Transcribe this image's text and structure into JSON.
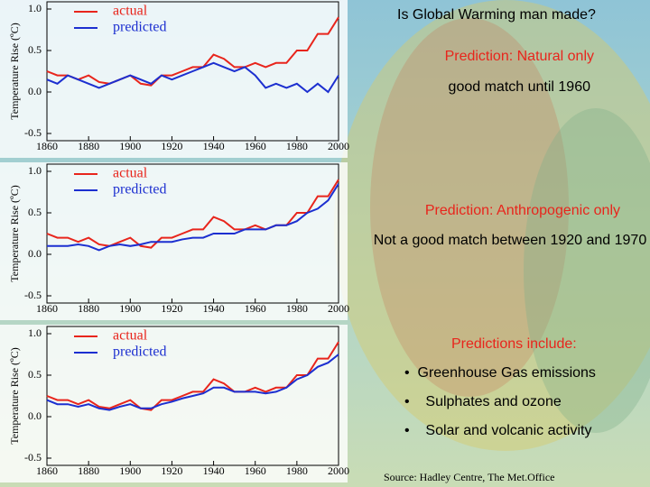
{
  "slide": {
    "title": "Is Global Warming man made?",
    "predictions_heading": "Predictions include:",
    "predictions": [
      "Greenhouse Gas emissions",
      "Sulphates and ozone",
      "Solar and volcanic activity"
    ],
    "source": "Source: Hadley Centre, The Met.Office"
  },
  "chart_data": [
    {
      "type": "line",
      "title": "Prediction: Natural only",
      "subtitle": "good match until 1960",
      "ylabel": "Temperature Rise (ºC)",
      "x": [
        1860,
        1865,
        1870,
        1875,
        1880,
        1885,
        1890,
        1895,
        1900,
        1905,
        1910,
        1915,
        1920,
        1925,
        1930,
        1935,
        1940,
        1945,
        1950,
        1955,
        1960,
        1965,
        1970,
        1975,
        1980,
        1985,
        1990,
        1995,
        2000
      ],
      "xlim": [
        1860,
        2000
      ],
      "xticks": [
        1860,
        1880,
        1900,
        1920,
        1940,
        1960,
        1980,
        2000
      ],
      "ylim": [
        -0.5,
        1
      ],
      "yticks": [
        {
          "value": 1,
          "label": "1.0"
        },
        0.5,
        {
          "value": 0,
          "label": "0.0"
        },
        -0.5
      ],
      "series": [
        {
          "name": "actual",
          "color": "#e8251c",
          "values": [
            0.25,
            0.2,
            0.2,
            0.15,
            0.2,
            0.12,
            0.1,
            0.15,
            0.2,
            0.1,
            0.08,
            0.2,
            0.2,
            0.25,
            0.3,
            0.3,
            0.45,
            0.4,
            0.3,
            0.3,
            0.35,
            0.3,
            0.35,
            0.35,
            0.5,
            0.5,
            0.7,
            0.7,
            0.9
          ]
        },
        {
          "name": "predicted",
          "color": "#1c2fd0",
          "values": [
            0.15,
            0.1,
            0.2,
            0.15,
            0.1,
            0.05,
            0.1,
            0.15,
            0.2,
            0.15,
            0.1,
            0.2,
            0.15,
            0.2,
            0.25,
            0.3,
            0.35,
            0.3,
            0.25,
            0.3,
            0.2,
            0.05,
            0.1,
            0.05,
            0.1,
            0.0,
            0.1,
            0.0,
            0.2
          ]
        }
      ]
    },
    {
      "type": "line",
      "title": "Prediction: Anthropogenic only",
      "subtitle": "Not a good match between 1920 and 1970",
      "ylabel": "Temperature Rise (ºC)",
      "x": [
        1860,
        1865,
        1870,
        1875,
        1880,
        1885,
        1890,
        1895,
        1900,
        1905,
        1910,
        1915,
        1920,
        1925,
        1930,
        1935,
        1940,
        1945,
        1950,
        1955,
        1960,
        1965,
        1970,
        1975,
        1980,
        1985,
        1990,
        1995,
        2000
      ],
      "xlim": [
        1860,
        2000
      ],
      "xticks": [
        1860,
        1880,
        1900,
        1920,
        1940,
        1960,
        1980,
        2000
      ],
      "ylim": [
        -0.5,
        1
      ],
      "yticks": [
        {
          "value": 1,
          "label": "1.0"
        },
        0.5,
        {
          "value": 0,
          "label": "0.0"
        },
        -0.5
      ],
      "series": [
        {
          "name": "actual",
          "color": "#e8251c",
          "values": [
            0.25,
            0.2,
            0.2,
            0.15,
            0.2,
            0.12,
            0.1,
            0.15,
            0.2,
            0.1,
            0.08,
            0.2,
            0.2,
            0.25,
            0.3,
            0.3,
            0.45,
            0.4,
            0.3,
            0.3,
            0.35,
            0.3,
            0.35,
            0.35,
            0.5,
            0.5,
            0.7,
            0.7,
            0.9
          ]
        },
        {
          "name": "predicted",
          "color": "#1c2fd0",
          "values": [
            0.1,
            0.1,
            0.1,
            0.12,
            0.1,
            0.05,
            0.1,
            0.12,
            0.1,
            0.12,
            0.15,
            0.15,
            0.15,
            0.18,
            0.2,
            0.2,
            0.25,
            0.25,
            0.25,
            0.3,
            0.3,
            0.3,
            0.35,
            0.35,
            0.4,
            0.5,
            0.55,
            0.65,
            0.85
          ]
        }
      ]
    },
    {
      "type": "line",
      "ylabel": "Temperature Rise (ºC)",
      "x": [
        1860,
        1865,
        1870,
        1875,
        1880,
        1885,
        1890,
        1895,
        1900,
        1905,
        1910,
        1915,
        1920,
        1925,
        1930,
        1935,
        1940,
        1945,
        1950,
        1955,
        1960,
        1965,
        1970,
        1975,
        1980,
        1985,
        1990,
        1995,
        2000
      ],
      "xlim": [
        1860,
        2000
      ],
      "xticks": [
        1860,
        1880,
        1900,
        1920,
        1940,
        1960,
        1980,
        2000
      ],
      "ylim": [
        -0.5,
        1
      ],
      "yticks": [
        {
          "value": 1,
          "label": "1.0"
        },
        0.5,
        {
          "value": 0,
          "label": "0.0"
        },
        -0.5
      ],
      "series": [
        {
          "name": "actual",
          "color": "#e8251c",
          "values": [
            0.25,
            0.2,
            0.2,
            0.15,
            0.2,
            0.12,
            0.1,
            0.15,
            0.2,
            0.1,
            0.08,
            0.2,
            0.2,
            0.25,
            0.3,
            0.3,
            0.45,
            0.4,
            0.3,
            0.3,
            0.35,
            0.3,
            0.35,
            0.35,
            0.5,
            0.5,
            0.7,
            0.7,
            0.9
          ]
        },
        {
          "name": "predicted",
          "color": "#1c2fd0",
          "values": [
            0.2,
            0.15,
            0.15,
            0.12,
            0.15,
            0.1,
            0.08,
            0.12,
            0.15,
            0.1,
            0.1,
            0.15,
            0.18,
            0.22,
            0.25,
            0.28,
            0.35,
            0.35,
            0.3,
            0.3,
            0.3,
            0.28,
            0.3,
            0.35,
            0.45,
            0.5,
            0.6,
            0.65,
            0.75
          ]
        }
      ]
    }
  ]
}
